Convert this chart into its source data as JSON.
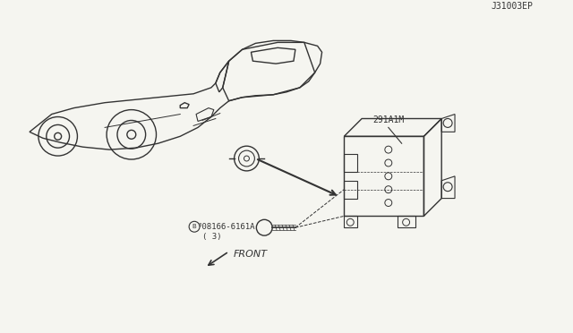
{
  "title": "",
  "diagram_code": "J31003EP",
  "part_label_1": "291A1M",
  "part_label_2": "³08166-6161A",
  "part_label_2b": "( 3)",
  "front_label": "FRONT",
  "bg_color": "#f5f5f0",
  "line_color": "#333333",
  "fig_width": 6.4,
  "fig_height": 3.72
}
